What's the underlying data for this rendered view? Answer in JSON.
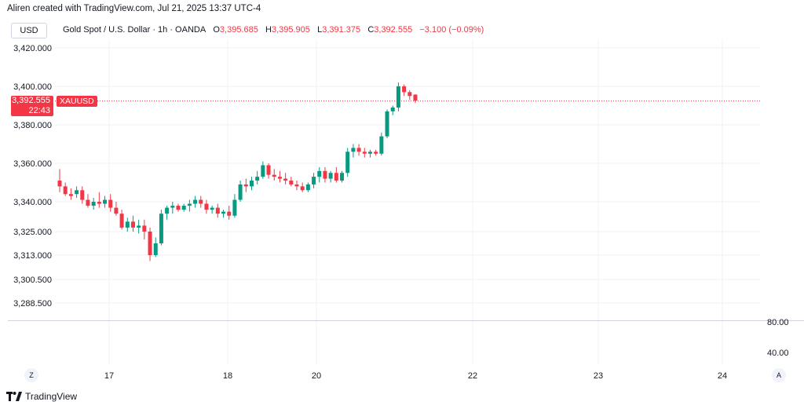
{
  "header": {
    "attribution": "Aliren created with TradingView.com, Jul 21, 2025 13:37 UTC-4"
  },
  "toolbar": {
    "currency": "USD"
  },
  "symbol": {
    "description": "Gold Spot / U.S. Dollar · 1h · OANDA",
    "o_label": "O",
    "o_value": "3,395.685",
    "h_label": "H",
    "h_value": "3,395.905",
    "l_label": "L",
    "l_value": "3,391.375",
    "c_label": "C",
    "c_value": "3,392.555",
    "change": "−3.100 (−0.09%)"
  },
  "price_tag": {
    "price": "3,392.555",
    "countdown": "22:43",
    "ticker": "XAUUSD"
  },
  "oscillator": {
    "tick_high": "80.00",
    "tick_low": "40.00"
  },
  "controls": {
    "zoom": "Z",
    "auto": "A"
  },
  "footer": {
    "brand": "TradingView"
  },
  "colors": {
    "up": "#089981",
    "down": "#f23645",
    "grid": "#eef0f4"
  },
  "chart_data": {
    "type": "candlestick",
    "y_ticks": [
      "3,420.000",
      "3,400.000",
      "3,380.000",
      "3,360.000",
      "3,340.000",
      "3,325.000",
      "3,313.000",
      "3,300.500",
      "3,288.500"
    ],
    "x_ticks": [
      "17",
      "18",
      "20",
      "22",
      "23",
      "24"
    ],
    "current_price": 3392.555,
    "candles": [
      {
        "o": 3351,
        "h": 3357,
        "l": 3345,
        "c": 3348
      },
      {
        "o": 3348,
        "h": 3350,
        "l": 3343,
        "c": 3344
      },
      {
        "o": 3344,
        "h": 3347,
        "l": 3341,
        "c": 3343
      },
      {
        "o": 3344,
        "h": 3348,
        "l": 3342,
        "c": 3346
      },
      {
        "o": 3346,
        "h": 3348,
        "l": 3339,
        "c": 3341
      },
      {
        "o": 3341,
        "h": 3344,
        "l": 3337,
        "c": 3338
      },
      {
        "o": 3338,
        "h": 3342,
        "l": 3336,
        "c": 3340
      },
      {
        "o": 3340,
        "h": 3345,
        "l": 3337,
        "c": 3339
      },
      {
        "o": 3339,
        "h": 3343,
        "l": 3337,
        "c": 3341
      },
      {
        "o": 3341,
        "h": 3344,
        "l": 3335,
        "c": 3337
      },
      {
        "o": 3337,
        "h": 3340,
        "l": 3333,
        "c": 3334
      },
      {
        "o": 3334,
        "h": 3336,
        "l": 3326,
        "c": 3327
      },
      {
        "o": 3327,
        "h": 3332,
        "l": 3325,
        "c": 3330
      },
      {
        "o": 3330,
        "h": 3333,
        "l": 3325,
        "c": 3327
      },
      {
        "o": 3327,
        "h": 3331,
        "l": 3324,
        "c": 3328
      },
      {
        "o": 3328,
        "h": 3331,
        "l": 3321,
        "c": 3325
      },
      {
        "o": 3325,
        "h": 3327,
        "l": 3310,
        "c": 3313
      },
      {
        "o": 3313,
        "h": 3322,
        "l": 3312,
        "c": 3319
      },
      {
        "o": 3319,
        "h": 3336,
        "l": 3318,
        "c": 3334
      },
      {
        "o": 3334,
        "h": 3338,
        "l": 3331,
        "c": 3337
      },
      {
        "o": 3337,
        "h": 3340,
        "l": 3334,
        "c": 3338
      },
      {
        "o": 3338,
        "h": 3339,
        "l": 3335,
        "c": 3336
      },
      {
        "o": 3336,
        "h": 3339,
        "l": 3335,
        "c": 3338
      },
      {
        "o": 3338,
        "h": 3341,
        "l": 3335,
        "c": 3339
      },
      {
        "o": 3339,
        "h": 3343,
        "l": 3337,
        "c": 3341
      },
      {
        "o": 3341,
        "h": 3343,
        "l": 3337,
        "c": 3339
      },
      {
        "o": 3339,
        "h": 3341,
        "l": 3334,
        "c": 3336
      },
      {
        "o": 3336,
        "h": 3338,
        "l": 3334,
        "c": 3337
      },
      {
        "o": 3337,
        "h": 3339,
        "l": 3332,
        "c": 3334
      },
      {
        "o": 3334,
        "h": 3336,
        "l": 3332,
        "c": 3335
      },
      {
        "o": 3335,
        "h": 3338,
        "l": 3331,
        "c": 3333
      },
      {
        "o": 3333,
        "h": 3344,
        "l": 3332,
        "c": 3341
      },
      {
        "o": 3341,
        "h": 3351,
        "l": 3340,
        "c": 3349
      },
      {
        "o": 3349,
        "h": 3352,
        "l": 3345,
        "c": 3348
      },
      {
        "o": 3348,
        "h": 3353,
        "l": 3346,
        "c": 3351
      },
      {
        "o": 3351,
        "h": 3356,
        "l": 3349,
        "c": 3353
      },
      {
        "o": 3353,
        "h": 3361,
        "l": 3352,
        "c": 3359
      },
      {
        "o": 3359,
        "h": 3360,
        "l": 3352,
        "c": 3354
      },
      {
        "o": 3354,
        "h": 3357,
        "l": 3351,
        "c": 3353
      },
      {
        "o": 3353,
        "h": 3356,
        "l": 3350,
        "c": 3352
      },
      {
        "o": 3352,
        "h": 3355,
        "l": 3349,
        "c": 3351
      },
      {
        "o": 3351,
        "h": 3353,
        "l": 3348,
        "c": 3349
      },
      {
        "o": 3349,
        "h": 3351,
        "l": 3346,
        "c": 3348
      },
      {
        "o": 3348,
        "h": 3350,
        "l": 3345,
        "c": 3346
      },
      {
        "o": 3346,
        "h": 3350,
        "l": 3345,
        "c": 3349
      },
      {
        "o": 3349,
        "h": 3355,
        "l": 3347,
        "c": 3353
      },
      {
        "o": 3353,
        "h": 3358,
        "l": 3350,
        "c": 3356
      },
      {
        "o": 3356,
        "h": 3358,
        "l": 3350,
        "c": 3352
      },
      {
        "o": 3352,
        "h": 3356,
        "l": 3350,
        "c": 3355
      },
      {
        "o": 3355,
        "h": 3358,
        "l": 3350,
        "c": 3351
      },
      {
        "o": 3351,
        "h": 3356,
        "l": 3350,
        "c": 3355
      },
      {
        "o": 3355,
        "h": 3368,
        "l": 3353,
        "c": 3366
      },
      {
        "o": 3366,
        "h": 3370,
        "l": 3363,
        "c": 3368
      },
      {
        "o": 3368,
        "h": 3370,
        "l": 3364,
        "c": 3366
      },
      {
        "o": 3366,
        "h": 3368,
        "l": 3363,
        "c": 3365
      },
      {
        "o": 3365,
        "h": 3367,
        "l": 3363,
        "c": 3366
      },
      {
        "o": 3366,
        "h": 3367,
        "l": 3364,
        "c": 3365
      },
      {
        "o": 3365,
        "h": 3376,
        "l": 3364,
        "c": 3374
      },
      {
        "o": 3374,
        "h": 3388,
        "l": 3373,
        "c": 3387
      },
      {
        "o": 3387,
        "h": 3390,
        "l": 3385,
        "c": 3389
      },
      {
        "o": 3389,
        "h": 3402,
        "l": 3387,
        "c": 3400
      },
      {
        "o": 3400,
        "h": 3401,
        "l": 3395,
        "c": 3397
      },
      {
        "o": 3397,
        "h": 3398,
        "l": 3393,
        "c": 3395
      },
      {
        "o": 3395.685,
        "h": 3395.905,
        "l": 3391.375,
        "c": 3392.555
      }
    ]
  }
}
